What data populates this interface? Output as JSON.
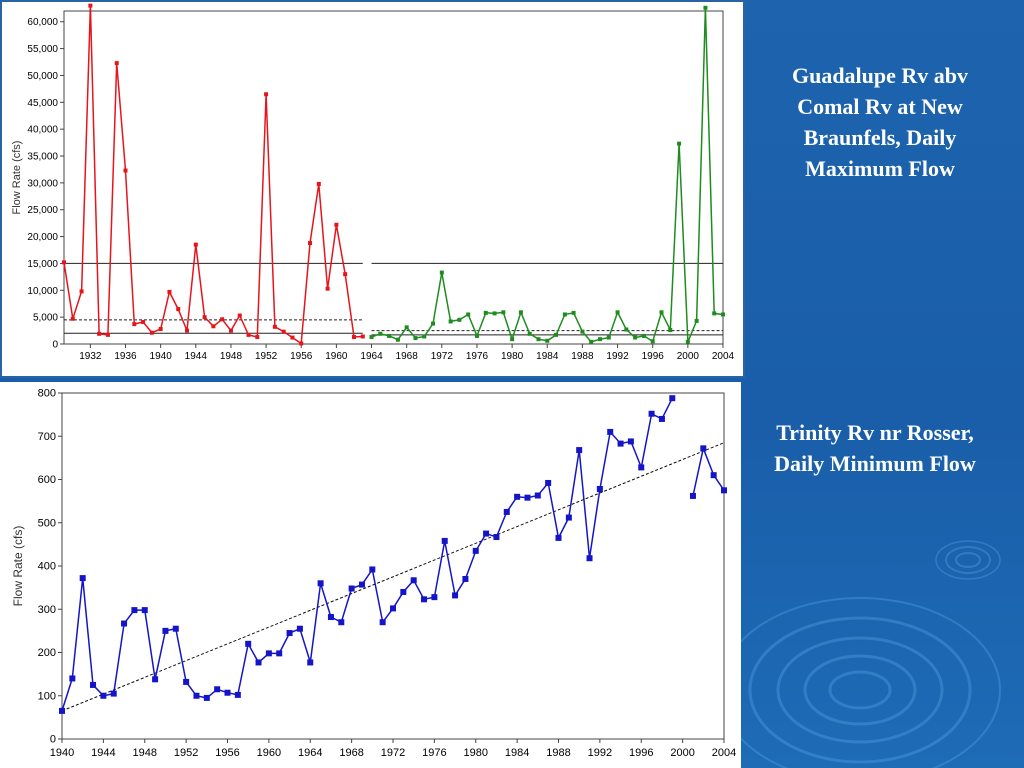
{
  "slide": {
    "labels": {
      "top": "Guadalupe Rv abv Comal Rv at New Braunfels, Daily Maximum Flow",
      "bottom": "Trinity Rv nr Rosser, Daily Minimum Flow"
    },
    "colors": {
      "background": "#1a5fa8",
      "label_text": "#ffffff"
    }
  },
  "chart_data": [
    {
      "type": "line",
      "ylabel": "Flow Rate (cfs)",
      "xlim": [
        1929,
        2004
      ],
      "ylim": [
        0,
        62000
      ],
      "yticks": [
        0,
        5000,
        10000,
        15000,
        20000,
        25000,
        30000,
        35000,
        40000,
        45000,
        50000,
        55000,
        60000
      ],
      "ytick_labels": [
        "0",
        "5,000",
        "10,000",
        "15,000",
        "20,000",
        "25,000",
        "30,000",
        "35,000",
        "40,000",
        "45,000",
        "50,000",
        "55,000",
        "60,000"
      ],
      "xticks": [
        1932,
        1936,
        1940,
        1944,
        1948,
        1952,
        1956,
        1960,
        1964,
        1968,
        1972,
        1976,
        1980,
        1984,
        1988,
        1992,
        1996,
        2000,
        2004
      ],
      "grid": false,
      "series": [
        {
          "color": "#e8141c",
          "x": [
            1929,
            1930,
            1931,
            1932,
            1933,
            1934,
            1935,
            1936,
            1937,
            1938,
            1939,
            1940,
            1941,
            1942,
            1943,
            1944,
            1945,
            1946,
            1947,
            1948,
            1949,
            1950,
            1951,
            1952,
            1953,
            1954,
            1955,
            1956,
            1957,
            1958,
            1959,
            1960,
            1961,
            1962,
            1963
          ],
          "y": [
            15200,
            4700,
            9800,
            63000,
            1900,
            1700,
            52300,
            32300,
            3700,
            4100,
            2100,
            2800,
            9700,
            6500,
            2500,
            18500,
            5000,
            3300,
            4600,
            2500,
            5300,
            1700,
            1300,
            46500,
            3200,
            2300,
            1200,
            100,
            18800,
            29800,
            10300,
            22200,
            13000,
            1300,
            1400
          ]
        },
        {
          "color": "#1e8c1e",
          "x": [
            1964,
            1965,
            1966,
            1967,
            1968,
            1969,
            1970,
            1971,
            1972,
            1973,
            1974,
            1975,
            1976,
            1977,
            1978,
            1979,
            1980,
            1981,
            1982,
            1983,
            1984,
            1985,
            1986,
            1987,
            1988,
            1989,
            1990,
            1991,
            1992,
            1993,
            1994,
            1995,
            1996,
            1997,
            1998,
            1999,
            2000,
            2001,
            2002,
            2003,
            2004
          ],
          "y": [
            1300,
            1900,
            1500,
            800,
            3100,
            1100,
            1400,
            3800,
            13300,
            4200,
            4500,
            5500,
            1500,
            5800,
            5700,
            5900,
            900,
            5900,
            1900,
            900,
            600,
            1700,
            5500,
            5800,
            2300,
            400,
            900,
            1200,
            5900,
            2700,
            1200,
            1500,
            500,
            5900,
            2600,
            37300,
            400,
            4300,
            62600,
            5700,
            5500
          ]
        }
      ],
      "reference_lines": [
        {
          "style": "solid",
          "y": 15000,
          "segments": [
            [
              1929,
              1963
            ],
            [
              1964,
              2004
            ]
          ]
        },
        {
          "style": "dashed",
          "y": 4500,
          "segments": [
            [
              1929,
              1963
            ]
          ]
        },
        {
          "style": "solid",
          "y": 2000,
          "segments": [
            [
              1929,
              1963
            ]
          ]
        },
        {
          "style": "dashed",
          "y": 2500,
          "segments": [
            [
              1964,
              2004
            ]
          ]
        },
        {
          "style": "solid",
          "y": 1700,
          "segments": [
            [
              1964,
              2004
            ]
          ]
        }
      ]
    },
    {
      "type": "line",
      "ylabel": "Flow Rate (cfs)",
      "xlim": [
        1940,
        2004
      ],
      "ylim": [
        0,
        800
      ],
      "yticks": [
        0,
        100,
        200,
        300,
        400,
        500,
        600,
        700,
        800
      ],
      "ytick_labels": [
        "0",
        "100",
        "200",
        "300",
        "400",
        "500",
        "600",
        "700",
        "800"
      ],
      "xticks": [
        1940,
        1944,
        1948,
        1952,
        1956,
        1960,
        1964,
        1968,
        1972,
        1976,
        1980,
        1984,
        1988,
        1992,
        1996,
        2000,
        2004
      ],
      "grid": false,
      "series": [
        {
          "color": "#1414c8",
          "segments": [
            {
              "x": [
                1940,
                1941,
                1942,
                1943,
                1944,
                1945,
                1946,
                1947,
                1948,
                1949,
                1950,
                1951,
                1952,
                1953,
                1954,
                1955,
                1956,
                1957,
                1958,
                1959,
                1960,
                1961,
                1962,
                1963,
                1964,
                1965,
                1966,
                1967,
                1968,
                1969,
                1970,
                1971,
                1972,
                1973,
                1974,
                1975,
                1976,
                1977,
                1978,
                1979,
                1980,
                1981,
                1982,
                1983,
                1984,
                1985,
                1986,
                1987,
                1988,
                1989,
                1990,
                1991,
                1992,
                1993,
                1994,
                1995,
                1996,
                1997,
                1998,
                1999
              ],
              "y": [
                65,
                140,
                372,
                125,
                100,
                105,
                267,
                298,
                298,
                138,
                250,
                255,
                132,
                100,
                95,
                115,
                107,
                102,
                220,
                177,
                198,
                198,
                245,
                255,
                177,
                360,
                282,
                270,
                348,
                357,
                392,
                270,
                302,
                340,
                367,
                323,
                328,
                458,
                332,
                370,
                435,
                475,
                467,
                525,
                560,
                558,
                563,
                592,
                465,
                512,
                668,
                418,
                578,
                710,
                683,
                688,
                628,
                752,
                740,
                788
              ]
            },
            {
              "x": [
                2001,
                2002,
                2003,
                2004
              ],
              "y": [
                562,
                672,
                610,
                575
              ]
            }
          ]
        }
      ],
      "trendline": {
        "style": "dashed",
        "x": [
          1940,
          2004
        ],
        "y": [
          65,
          685
        ]
      }
    }
  ]
}
